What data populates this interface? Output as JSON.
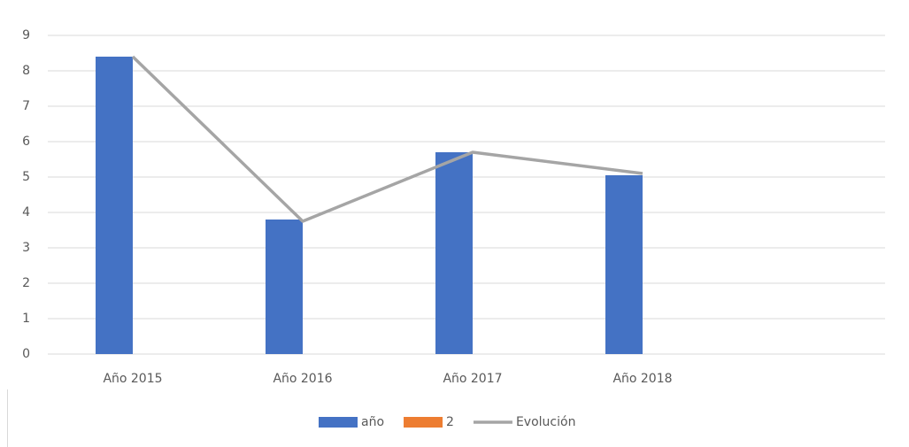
{
  "chart_data": {
    "type": "bar",
    "categories": [
      "Año 2015",
      "Año 2016",
      "Año 2017",
      "Año 2018",
      null
    ],
    "series": [
      {
        "name": "año",
        "color": "#4472c4",
        "type": "bar",
        "values": [
          8.4,
          3.8,
          5.7,
          5.05,
          null
        ]
      },
      {
        "name": "2",
        "color": "#ed7d31",
        "type": "bar",
        "values": [
          null,
          null,
          null,
          null,
          null
        ]
      },
      {
        "name": "Evolución",
        "color": "#a5a5a5",
        "type": "line",
        "values": [
          8.4,
          3.75,
          5.7,
          5.1,
          null
        ]
      }
    ],
    "ylim": [
      0,
      9
    ],
    "yticks": [
      0,
      1,
      2,
      3,
      4,
      5,
      6,
      7,
      8,
      9
    ],
    "grid": true,
    "legend": "bottom"
  }
}
